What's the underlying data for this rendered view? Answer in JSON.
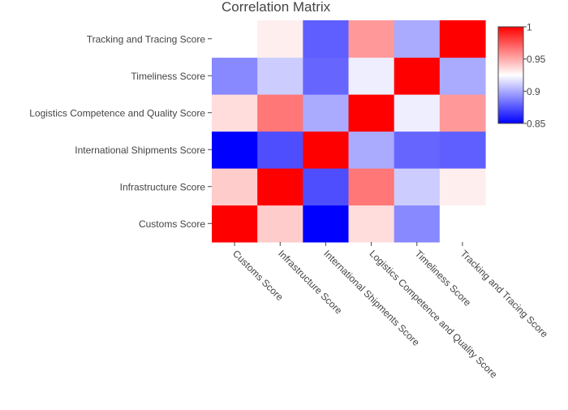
{
  "chart_data": {
    "type": "heatmap",
    "title": "Correlation Matrix",
    "x_categories": [
      "Customs Score",
      "Infrastructure Score",
      "International Shipments Score",
      "Logistics Competence and Quality Score",
      "Timeliness Score",
      "Tracking and Tracing Score"
    ],
    "y_categories": [
      "Customs Score",
      "Infrastructure Score",
      "International Shipments Score",
      "Logistics Competence and Quality Score",
      "Timeliness Score",
      "Tracking and Tracing Score"
    ],
    "z": [
      [
        1.0,
        0.94,
        0.85,
        0.935,
        0.89,
        0.925
      ],
      [
        0.94,
        1.0,
        0.873,
        0.965,
        0.91,
        0.93
      ],
      [
        0.85,
        0.873,
        1.0,
        0.9,
        0.88,
        0.878
      ],
      [
        0.935,
        0.965,
        0.9,
        1.0,
        0.92,
        0.955
      ],
      [
        0.89,
        0.91,
        0.88,
        0.92,
        1.0,
        0.9
      ],
      [
        0.925,
        0.93,
        0.878,
        0.955,
        0.9,
        1.0
      ]
    ],
    "zlim": [
      0.85,
      1.0
    ],
    "colorscale": [
      [
        0.0,
        "#0000ff"
      ],
      [
        0.5,
        "#ffffff"
      ],
      [
        1.0,
        "#ff0000"
      ]
    ],
    "colorbar_ticks": [
      "0.85",
      "0.9",
      "0.95",
      "1"
    ],
    "colorbar_tick_values": [
      0.85,
      0.9,
      0.95,
      1.0
    ],
    "legend_placement": "right"
  }
}
